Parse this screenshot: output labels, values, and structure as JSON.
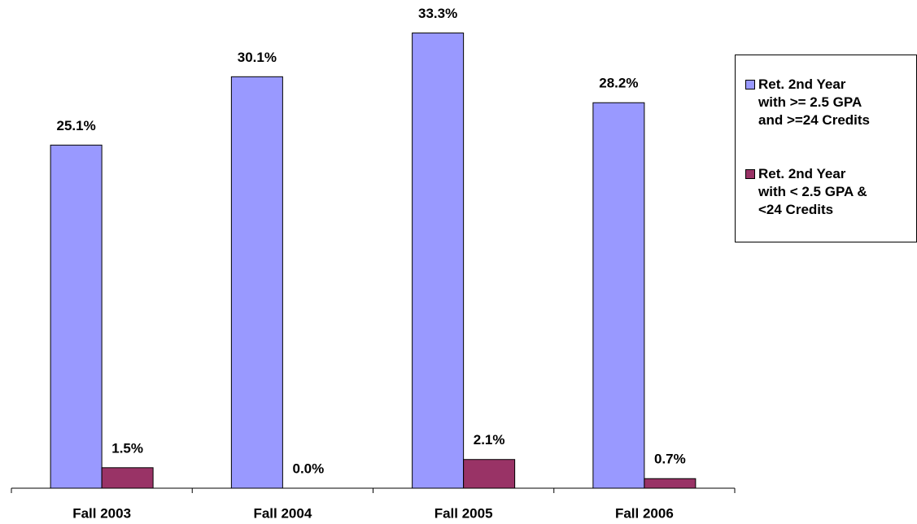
{
  "chart_data": {
    "type": "bar",
    "categories": [
      "Fall 2003",
      "Fall 2004",
      "Fall 2005",
      "Fall 2006"
    ],
    "series": [
      {
        "name": "Ret. 2nd Year\nwith >= 2.5 GPA\nand >=24 Credits",
        "color": "#9999ff",
        "values": [
          25.1,
          30.1,
          33.3,
          28.2
        ],
        "value_labels": [
          "25.1%",
          "30.1%",
          "33.3%",
          "28.2%"
        ]
      },
      {
        "name": "Ret. 2nd Year\nwith < 2.5 GPA &\n<24 Credits",
        "color": "#993366",
        "values": [
          1.5,
          0.0,
          2.1,
          0.7
        ],
        "value_labels": [
          "1.5%",
          "0.0%",
          "2.1%",
          "0.7%"
        ]
      }
    ],
    "ylim": [
      0,
      35
    ],
    "legend": "right"
  }
}
